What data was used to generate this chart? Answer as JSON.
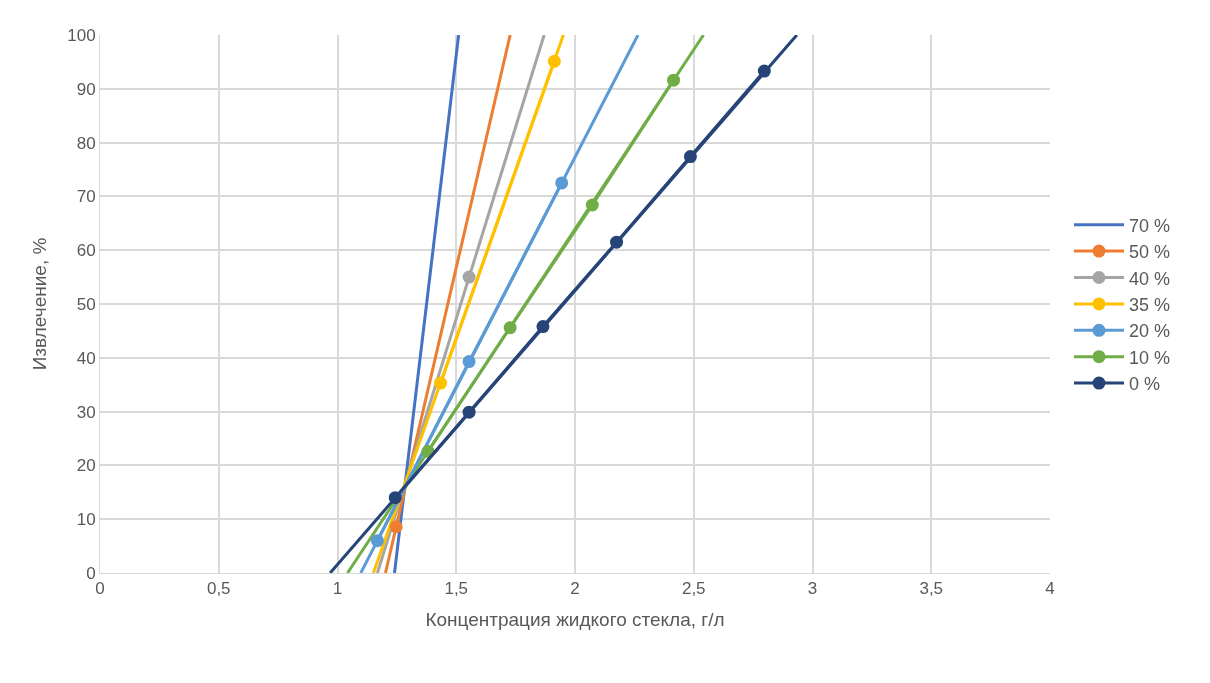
{
  "chart_data": {
    "type": "line",
    "xlabel": "Концентрация жидкого стекла, г/л",
    "ylabel": "Извлечение, %",
    "xlim": [
      0,
      4
    ],
    "xticks": [
      0,
      {
        "value": 0.5,
        "label": "0,5"
      },
      1,
      {
        "value": 1.5,
        "label": "1,5"
      },
      2,
      {
        "value": 2.5,
        "label": "2,5"
      },
      3,
      {
        "value": 3.5,
        "label": "3,5"
      },
      4
    ],
    "ylim": [
      0,
      100
    ],
    "yticks": [
      0,
      10,
      20,
      30,
      40,
      50,
      60,
      70,
      80,
      90,
      100
    ],
    "grid": true,
    "legend": "right",
    "series": [
      {
        "name": "70 %",
        "color": "#4472c4",
        "marker": "none",
        "x": [
          1.24,
          1.51
        ],
        "values": [
          0,
          100
        ]
      },
      {
        "color": "#ed7d31",
        "marker": "none",
        "x": [
          1.202,
          1.727
        ],
        "values": [
          0,
          100
        ]
      },
      {
        "color": "#a5a5a5",
        "marker": "none",
        "x": [
          1.168,
          1.87
        ],
        "values": [
          0,
          100
        ]
      },
      {
        "color": "#ffc000",
        "marker": "none",
        "x": [
          1.151,
          1.951
        ],
        "values": [
          0,
          100
        ]
      },
      {
        "color": "#5b9bd5",
        "marker": "none",
        "x": [
          1.098,
          2.265
        ],
        "values": [
          0,
          100
        ]
      },
      {
        "color": "#70ad47",
        "marker": "none",
        "x": [
          1.042,
          2.541
        ],
        "values": [
          0,
          100
        ]
      },
      {
        "color": "#264478",
        "marker": "none",
        "x": [
          0.969,
          2.934
        ],
        "values": [
          0,
          100
        ]
      },
      {
        "name": "50 %",
        "color": "#ed7d31",
        "marker": "circle",
        "x": [
          1.247
        ],
        "values": [
          8.6
        ]
      },
      {
        "name": "40 %",
        "color": "#a5a5a5",
        "marker": "circle",
        "x": [
          1.554
        ],
        "values": [
          55.0
        ]
      },
      {
        "name": "35 %",
        "color": "#ffc000",
        "marker": "circle",
        "x": [
          1.434,
          1.913
        ],
        "values": [
          35.3,
          95.1
        ]
      },
      {
        "name": "20 %",
        "color": "#5b9bd5",
        "marker": "circle",
        "x": [
          1.168,
          1.554,
          1.944
        ],
        "values": [
          6.0,
          39.3,
          72.5
        ]
      },
      {
        "name": "10 %",
        "color": "#70ad47",
        "marker": "circle",
        "x": [
          1.381,
          1.727,
          2.073,
          2.415
        ],
        "values": [
          22.6,
          45.6,
          68.4,
          91.6
        ]
      },
      {
        "name": "0 %",
        "color": "#264478",
        "marker": "circle",
        "x": [
          1.243,
          1.554,
          1.865,
          2.175,
          2.486,
          2.797
        ],
        "values": [
          14.0,
          29.9,
          45.8,
          61.5,
          77.4,
          93.3
        ]
      }
    ]
  }
}
